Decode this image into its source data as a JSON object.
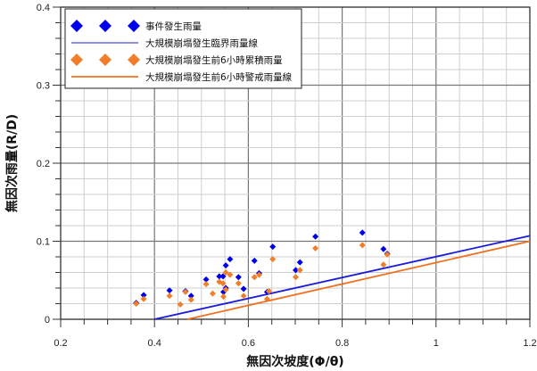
{
  "chart_data": {
    "type": "scatter",
    "xlabel": "無因次坡度(Φ/θ)",
    "ylabel": "無因次雨量(R/D)",
    "xlim": [
      0.2,
      1.2
    ],
    "ylim": [
      0,
      0.4
    ],
    "xticks": [
      "0.2",
      "0.4",
      "0.6",
      "0.8",
      "1",
      "1.2"
    ],
    "yticks": [
      "0",
      "0.1",
      "0.2",
      "0.3",
      "0.4"
    ],
    "grid": true,
    "legend_position": "top-left",
    "series": [
      {
        "name": "事件發生雨量",
        "kind": "scatter",
        "marker": "diamond",
        "color": "#0000ee",
        "points": [
          [
            0.361,
            0.021
          ],
          [
            0.377,
            0.031
          ],
          [
            0.432,
            0.037
          ],
          [
            0.466,
            0.036
          ],
          [
            0.478,
            0.03
          ],
          [
            0.51,
            0.051
          ],
          [
            0.538,
            0.055
          ],
          [
            0.546,
            0.055
          ],
          [
            0.552,
            0.069
          ],
          [
            0.561,
            0.077
          ],
          [
            0.547,
            0.035
          ],
          [
            0.552,
            0.04
          ],
          [
            0.579,
            0.054
          ],
          [
            0.59,
            0.039
          ],
          [
            0.613,
            0.075
          ],
          [
            0.623,
            0.059
          ],
          [
            0.64,
            0.035
          ],
          [
            0.652,
            0.093
          ],
          [
            0.701,
            0.063
          ],
          [
            0.71,
            0.073
          ],
          [
            0.743,
            0.106
          ],
          [
            0.843,
            0.111
          ],
          [
            0.888,
            0.09
          ],
          [
            0.896,
            0.084
          ]
        ]
      },
      {
        "name": "大規模崩塌發生臨界雨量線",
        "kind": "line",
        "color": "#1a1adc",
        "points": [
          [
            0.4,
            0.0
          ],
          [
            1.2,
            0.107
          ]
        ]
      },
      {
        "name": "大規模崩塌發生前6小時累積雨量",
        "kind": "scatter",
        "marker": "diamond",
        "color": "#f07f2a",
        "points": [
          [
            0.361,
            0.02
          ],
          [
            0.377,
            0.026
          ],
          [
            0.432,
            0.03
          ],
          [
            0.466,
            0.035
          ],
          [
            0.455,
            0.019
          ],
          [
            0.478,
            0.025
          ],
          [
            0.51,
            0.045
          ],
          [
            0.524,
            0.033
          ],
          [
            0.538,
            0.048
          ],
          [
            0.546,
            0.046
          ],
          [
            0.552,
            0.06
          ],
          [
            0.561,
            0.057
          ],
          [
            0.547,
            0.029
          ],
          [
            0.552,
            0.038
          ],
          [
            0.579,
            0.046
          ],
          [
            0.59,
            0.03
          ],
          [
            0.613,
            0.054
          ],
          [
            0.623,
            0.057
          ],
          [
            0.644,
            0.036
          ],
          [
            0.64,
            0.026
          ],
          [
            0.652,
            0.077
          ],
          [
            0.701,
            0.054
          ],
          [
            0.71,
            0.063
          ],
          [
            0.743,
            0.091
          ],
          [
            0.843,
            0.095
          ],
          [
            0.888,
            0.07
          ],
          [
            0.896,
            0.083
          ]
        ]
      },
      {
        "name": "大規模崩塌發生前6小時警戒雨量線",
        "kind": "line",
        "color": "#f07020",
        "points": [
          [
            0.47,
            0.0
          ],
          [
            1.2,
            0.1
          ]
        ]
      }
    ]
  }
}
